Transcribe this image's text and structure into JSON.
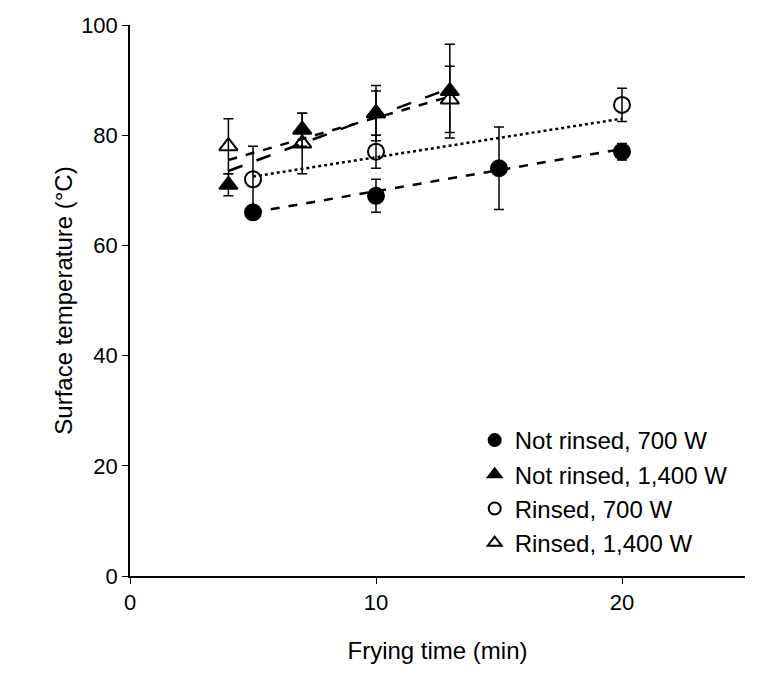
{
  "chart_data": {
    "type": "scatter",
    "x_label": "Frying time (min)",
    "y_label": "Surface temperature (°C)",
    "xlim": [
      0,
      25
    ],
    "xticks": [
      0,
      10,
      20
    ],
    "ylim": [
      0,
      100
    ],
    "yticks": [
      0,
      20,
      40,
      60,
      80,
      100
    ],
    "grid": false,
    "legend": "lower right",
    "series": [
      {
        "name": "Not rinsed, 700 W",
        "color": "#000000",
        "marker": "circle",
        "line_style": "dash",
        "x": [
          5,
          10,
          15,
          20
        ],
        "values": [
          66,
          69,
          74,
          77
        ],
        "errors": [
          1,
          3,
          7.5,
          1.5
        ],
        "trend_x": [
          5,
          20
        ],
        "trend_values": [
          66,
          77.5
        ]
      },
      {
        "name": "Not rinsed, 1,400 W",
        "color": "#000000",
        "marker": "triangle-up",
        "line_style": "longdash",
        "x": [
          4,
          7,
          10,
          13
        ],
        "values": [
          71,
          81,
          84,
          88
        ],
        "errors": [
          2,
          3,
          4,
          8.5
        ],
        "trend_x": [
          4,
          13
        ],
        "trend_values": [
          73.5,
          88.5
        ]
      },
      {
        "name": "Rinsed, 700 W",
        "color": "#000000",
        "marker": "circle-open",
        "line_style": "dot",
        "x": [
          5,
          10,
          20
        ],
        "values": [
          72,
          77,
          85.5
        ],
        "errors": [
          6,
          3,
          3
        ],
        "trend_x": [
          5,
          20
        ],
        "trend_values": [
          72.5,
          83
        ]
      },
      {
        "name": "Rinsed, 1,400 W",
        "color": "#000000",
        "marker": "triangle-up-open",
        "line_style": "dash",
        "x": [
          4,
          7,
          10,
          13
        ],
        "values": [
          78,
          78.5,
          84,
          86.5
        ],
        "errors": [
          5,
          5.5,
          5,
          6
        ],
        "trend_x": [
          4,
          13
        ],
        "trend_values": [
          75.5,
          87
        ]
      }
    ]
  }
}
